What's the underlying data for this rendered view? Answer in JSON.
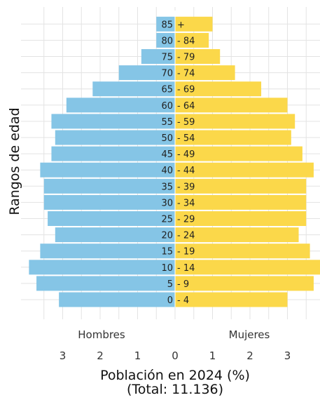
{
  "chart_data": {
    "type": "bar",
    "orientation": "horizontal",
    "subtype": "population-pyramid",
    "ylabel": "Rangos de edad",
    "xlabel": "Población en 2024 (%)",
    "subtitle": "(Total: 11.136)",
    "categories": [
      "0 - 4",
      "5 - 9",
      "10 - 14",
      "15 - 19",
      "20 - 24",
      "25 - 29",
      "30 - 34",
      "35 - 39",
      "40 - 44",
      "45 - 49",
      "50 - 54",
      "55 - 59",
      "60 - 64",
      "65 - 69",
      "70 - 74",
      "75 - 79",
      "80 - 84",
      "85 +"
    ],
    "category_parts": [
      [
        "0",
        "4"
      ],
      [
        "5",
        "9"
      ],
      [
        "10",
        "14"
      ],
      [
        "15",
        "19"
      ],
      [
        "20",
        "24"
      ],
      [
        "25",
        "29"
      ],
      [
        "30",
        "34"
      ],
      [
        "35",
        "39"
      ],
      [
        "40",
        "44"
      ],
      [
        "45",
        "49"
      ],
      [
        "50",
        "54"
      ],
      [
        "55",
        "59"
      ],
      [
        "60",
        "64"
      ],
      [
        "65",
        "69"
      ],
      [
        "70",
        "74"
      ],
      [
        "75",
        "79"
      ],
      [
        "80",
        "84"
      ],
      [
        "85",
        "+"
      ]
    ],
    "series": [
      {
        "name": "Hombres",
        "side": "left",
        "color": "#85c5e6",
        "values": [
          3.1,
          3.7,
          3.9,
          3.6,
          3.2,
          3.4,
          3.5,
          3.5,
          3.6,
          3.3,
          3.2,
          3.3,
          2.9,
          2.2,
          1.5,
          0.9,
          0.5,
          0.5
        ]
      },
      {
        "name": "Mujeres",
        "side": "right",
        "color": "#fbd84a",
        "values": [
          3.0,
          3.7,
          3.9,
          3.6,
          3.3,
          3.5,
          3.5,
          3.5,
          3.7,
          3.4,
          3.1,
          3.2,
          3.0,
          2.3,
          1.6,
          1.2,
          0.9,
          1.0
        ]
      }
    ],
    "xticks": [
      3,
      2,
      1,
      0,
      1,
      2,
      3
    ],
    "xlim": [
      -3.9,
      3.9
    ],
    "grid": true
  }
}
